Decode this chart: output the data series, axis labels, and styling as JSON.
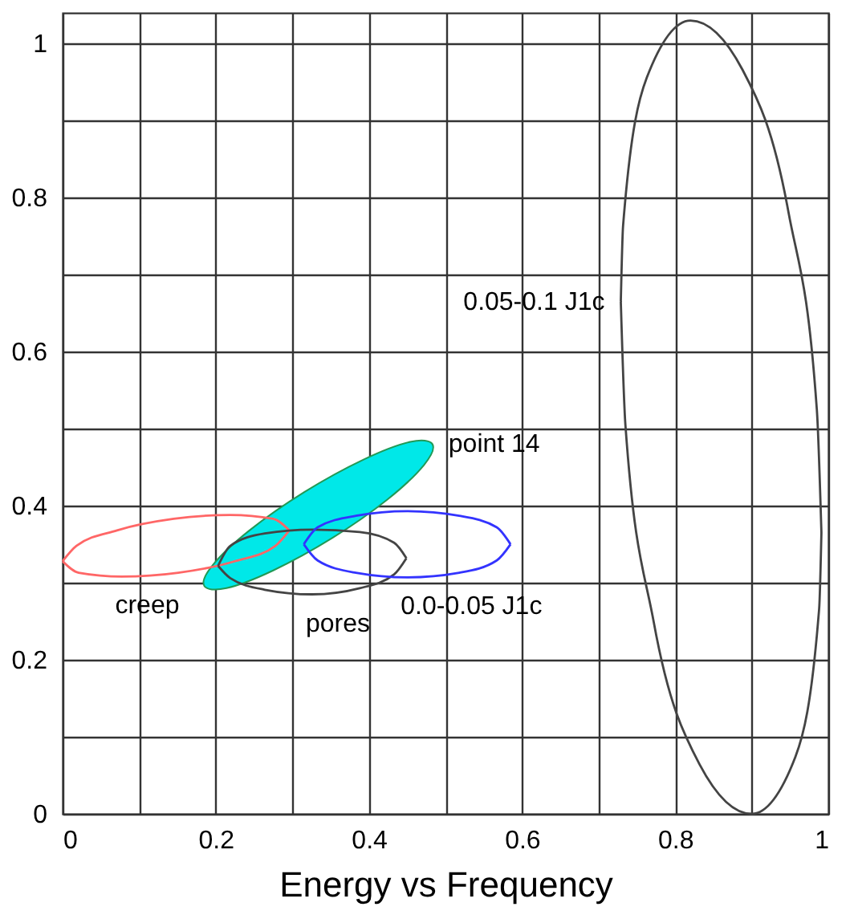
{
  "chart_data": {
    "type": "line",
    "xlabel": "Energy vs Frequency",
    "xlim": [
      0,
      1
    ],
    "ylim": [
      0,
      1.04
    ],
    "xticks": [
      0,
      {
        "value": 0.1,
        "label": null
      },
      0.2,
      {
        "value": 0.3,
        "label": null
      },
      0.4,
      {
        "value": 0.5,
        "label": null
      },
      0.6,
      {
        "value": 0.7,
        "label": null
      },
      0.8,
      {
        "value": 0.9,
        "label": null
      },
      1
    ],
    "yticks": [
      0,
      {
        "value": 0.1,
        "label": null
      },
      0.2,
      {
        "value": 0.3,
        "label": null
      },
      0.4,
      {
        "value": 0.5,
        "label": null
      },
      0.6,
      {
        "value": 0.7,
        "label": null
      },
      0.8,
      {
        "value": 0.9,
        "label": null
      },
      1
    ],
    "grid": true,
    "marker": "none",
    "series": [
      {
        "name": "creep",
        "color": "#ff6666",
        "x": [
          0.0,
          0.018,
          0.071,
          0.145,
          0.219,
          0.275,
          0.296,
          null,
          0.0,
          0.021,
          0.077,
          0.151,
          0.225,
          0.278,
          0.296
        ],
        "values": [
          0.328,
          0.348,
          0.368,
          0.383,
          0.388,
          0.383,
          0.368,
          null,
          0.328,
          0.313,
          0.308,
          0.313,
          0.328,
          0.348,
          0.368
        ]
      },
      {
        "name": "point 14",
        "type": "area",
        "color": "#00e8e8",
        "x": [
          0.483,
          0.454,
          0.393,
          0.316,
          0.244,
          0.196,
          0.185,
          0.214,
          0.275,
          0.352,
          0.424,
          0.472
        ],
        "values": [
          0.48,
          0.483,
          0.46,
          0.418,
          0.368,
          0.323,
          0.296,
          0.293,
          0.316,
          0.358,
          0.408,
          0.453
        ]
      },
      {
        "name": "pores",
        "color": "#444444",
        "x": [
          0.203,
          0.219,
          0.264,
          0.326,
          0.388,
          0.433,
          0.449,
          null,
          0.203,
          0.219,
          0.264,
          0.326,
          0.388,
          0.433,
          0.449
        ],
        "values": [
          0.322,
          0.348,
          0.364,
          0.369,
          0.366,
          0.352,
          0.332,
          null,
          0.322,
          0.306,
          0.291,
          0.285,
          0.293,
          0.311,
          0.332
        ]
      },
      {
        "name": "0.0-0.05 J1c",
        "color": "#3333ff",
        "x": [
          0.315,
          0.333,
          0.383,
          0.45,
          0.518,
          0.567,
          0.585,
          null,
          0.315,
          0.333,
          0.383,
          0.45,
          0.518,
          0.567,
          0.585
        ],
        "values": [
          0.35,
          0.372,
          0.387,
          0.393,
          0.387,
          0.372,
          0.35,
          null,
          0.35,
          0.329,
          0.313,
          0.307,
          0.313,
          0.329,
          0.35
        ]
      },
      {
        "name": "0.05-0.1 J1c",
        "color": "#444444",
        "x": [
          0.729,
          0.732,
          0.763,
          0.82,
          0.888,
          0.948,
          0.985,
          0.991,
          null,
          0.729,
          0.735,
          0.772,
          0.832,
          0.9,
          0.957,
          0.988,
          0.991
        ],
        "values": [
          0.665,
          0.764,
          0.956,
          1.03,
          0.966,
          0.781,
          0.525,
          0.365,
          null,
          0.665,
          0.505,
          0.249,
          0.064,
          0.0,
          0.074,
          0.266,
          0.365
        ]
      }
    ]
  }
}
